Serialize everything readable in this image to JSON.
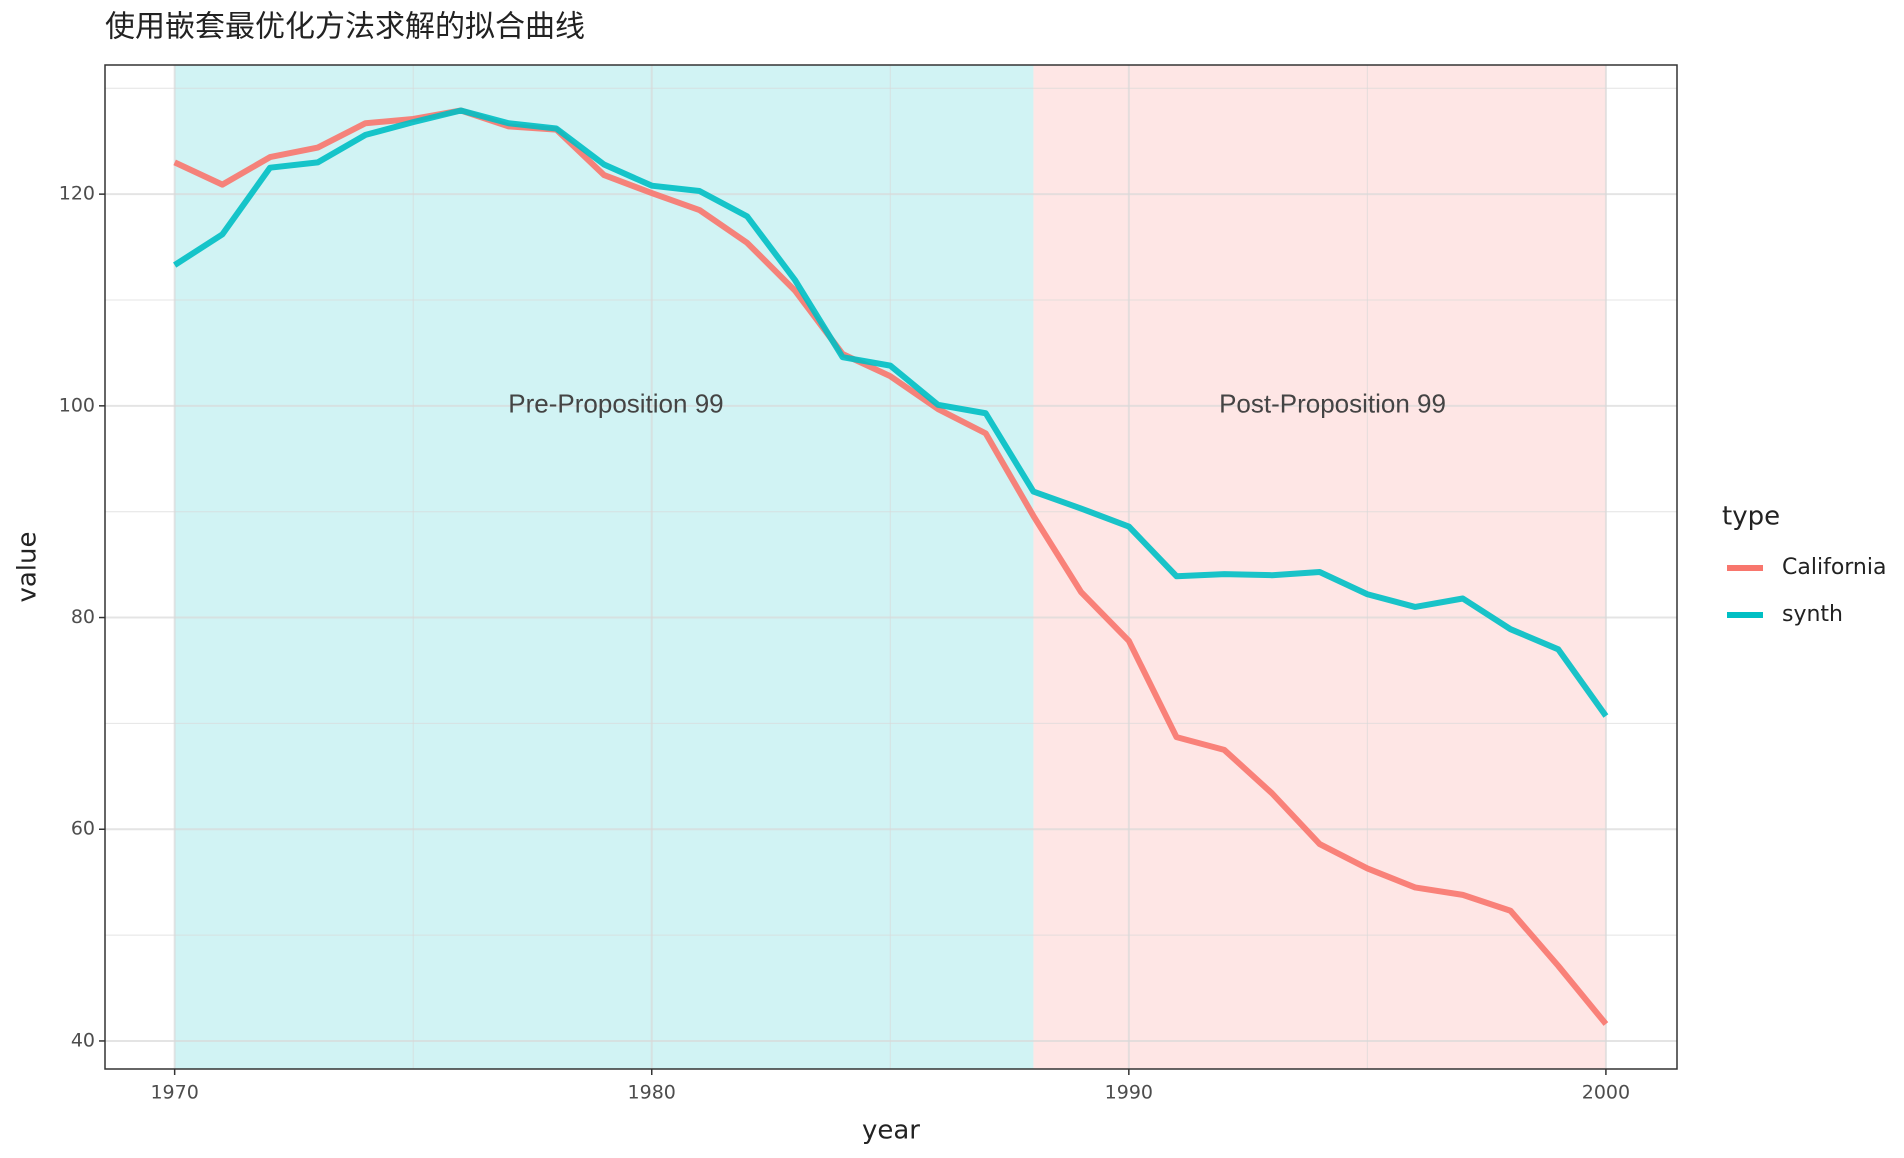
{
  "chart_data": {
    "type": "line",
    "title": "使用嵌套最优化方法求解的拟合曲线",
    "xlabel": "year",
    "ylabel": "value",
    "x": [
      1970,
      1971,
      1972,
      1973,
      1974,
      1975,
      1976,
      1977,
      1978,
      1979,
      1980,
      1981,
      1982,
      1983,
      1984,
      1985,
      1986,
      1987,
      1988,
      1989,
      1990,
      1991,
      1992,
      1993,
      1994,
      1995,
      1996,
      1997,
      1998,
      1999,
      2000
    ],
    "series": [
      {
        "name": "California",
        "color": "#F8766D",
        "values": [
          123.0,
          120.9,
          123.5,
          124.4,
          126.7,
          127.1,
          127.9,
          126.4,
          126.1,
          121.8,
          120.1,
          118.5,
          115.4,
          110.9,
          104.9,
          102.8,
          99.7,
          97.4,
          89.6,
          82.4,
          77.8,
          68.7,
          67.5,
          63.4,
          58.6,
          56.3,
          54.5,
          53.8,
          52.3,
          47.1,
          41.6
        ]
      },
      {
        "name": "synth",
        "color": "#00BFC4",
        "values": [
          113.3,
          116.2,
          122.5,
          123.0,
          125.6,
          126.8,
          127.9,
          126.7,
          126.2,
          122.8,
          120.8,
          120.3,
          117.9,
          111.9,
          104.6,
          103.8,
          100.1,
          99.3,
          91.9,
          90.3,
          88.6,
          83.9,
          84.1,
          84.0,
          84.3,
          82.2,
          81.0,
          81.8,
          78.9,
          77.0,
          70.7
        ]
      }
    ],
    "regions": [
      {
        "xmin": 1970,
        "xmax": 1988,
        "color": "#00BFC4",
        "label": "Pre-Proposition 99",
        "label_x": 1979.25,
        "label_y": 100
      },
      {
        "xmin": 1988,
        "xmax": 2000,
        "color": "#F8766D",
        "label": "Post-Proposition 99",
        "label_x": 1994.27,
        "label_y": 100
      }
    ],
    "xlim": [
      1968.54,
      2001.49
    ],
    "ylim": [
      37.35,
      132.2
    ],
    "xticks": [
      1970,
      1980,
      1990,
      2000
    ],
    "yticks": [
      40,
      60,
      80,
      100,
      120
    ],
    "grid": true,
    "legend_title": "type",
    "legend": "right"
  }
}
